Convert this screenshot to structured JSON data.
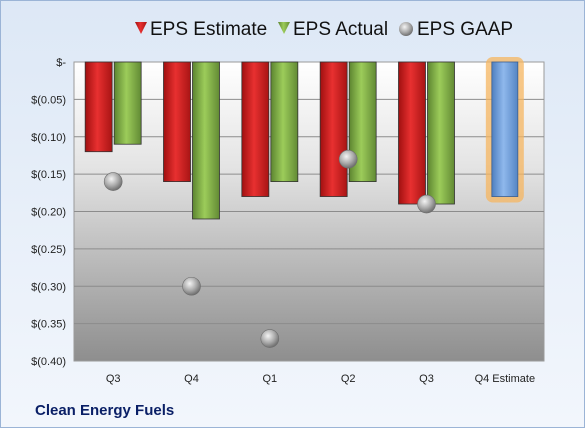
{
  "footer": {
    "company": "Clean Energy Fuels"
  },
  "chart_data": {
    "type": "bar",
    "title": "",
    "xlabel": "",
    "ylabel": "",
    "categories": [
      "Q3",
      "Q4",
      "Q1",
      "Q2",
      "Q3",
      "Q4 Estimate"
    ],
    "ylim": [
      -0.4,
      0.0
    ],
    "yticks": [
      0.0,
      -0.05,
      -0.1,
      -0.15,
      -0.2,
      -0.25,
      -0.3,
      -0.35,
      -0.4
    ],
    "ytick_labels": [
      "$-",
      "$(0.05)",
      "$(0.10)",
      "$(0.15)",
      "$(0.20)",
      "$(0.25)",
      "$(0.30)",
      "$(0.35)",
      "$(0.40)"
    ],
    "legend_position": "top",
    "series": [
      {
        "name": "EPS Estimate",
        "kind": "bar",
        "color": "#d42020",
        "values": [
          -0.12,
          -0.16,
          -0.18,
          -0.18,
          -0.19,
          null
        ]
      },
      {
        "name": "EPS Actual",
        "kind": "bar",
        "color": "#7fa843",
        "values": [
          -0.11,
          -0.21,
          -0.16,
          -0.16,
          -0.19,
          null
        ]
      },
      {
        "name": "EPS GAAP",
        "kind": "marker",
        "color": "#a9a9a9",
        "values": [
          -0.16,
          -0.3,
          -0.37,
          -0.13,
          -0.19,
          null
        ]
      }
    ],
    "forecast": {
      "category": "Q4 Estimate",
      "value": -0.18,
      "color": "#6f9fdc",
      "glow": "#f5b660"
    }
  }
}
